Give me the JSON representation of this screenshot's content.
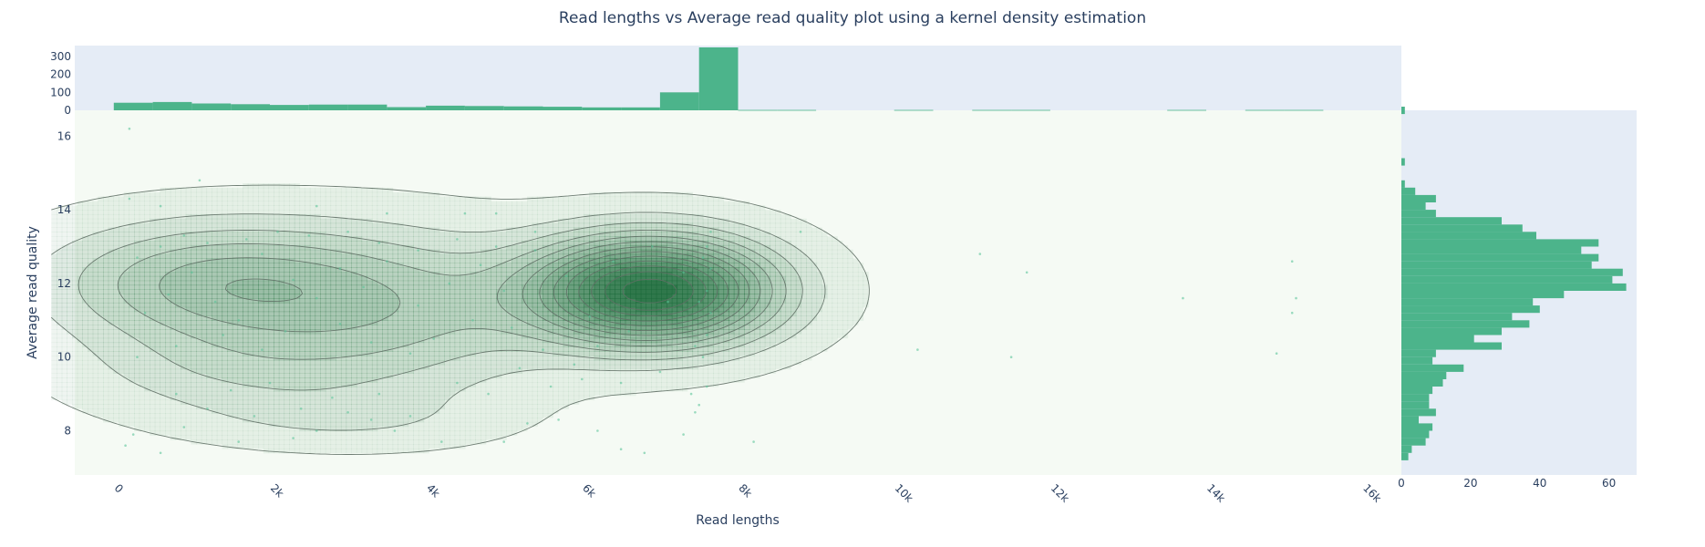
{
  "colors": {
    "bar": "#4cb48b",
    "point": "#5cc49a",
    "contour_line": "#5f6f65",
    "contour_fill": "#1c6b3a",
    "main_bg": "#f5faf4",
    "marginal_bg": "#e5ecf6",
    "text": "#2a3f5f"
  },
  "chart_data": [
    {
      "type": "contour",
      "title": "Read lengths vs Average read quality plot using a kernel density estimation",
      "xlabel": "Read lengths",
      "ylabel": "Average read quality",
      "xlim": [
        -500,
        16500
      ],
      "ylim": [
        6.8,
        16.7
      ],
      "x_ticks": [
        0,
        2000,
        4000,
        6000,
        8000,
        10000,
        12000,
        14000,
        16000
      ],
      "x_tick_labels": [
        "0",
        "2k",
        "4k",
        "6k",
        "8k",
        "10k",
        "12k",
        "14k",
        "16k"
      ],
      "y_ticks": [
        8,
        10,
        12,
        14,
        16
      ],
      "y_tick_labels": [
        "8",
        "10",
        "12",
        "14",
        "16"
      ],
      "grid": false,
      "density_peaks": [
        {
          "x": 6900,
          "y": 11.8,
          "sx": 1050,
          "sy": 1.0,
          "w": 1.0
        },
        {
          "x": 1300,
          "y": 12.0,
          "sx": 1500,
          "sy": 1.15,
          "w": 0.36
        },
        {
          "x": 3700,
          "y": 11.2,
          "sx": 1400,
          "sy": 1.5,
          "w": 0.24
        },
        {
          "x": 1500,
          "y": 9.6,
          "sx": 1400,
          "sy": 0.9,
          "w": 0.13
        },
        {
          "x": 3000,
          "y": 8.3,
          "sx": 1300,
          "sy": 0.55,
          "w": 0.08
        }
      ],
      "points": [
        [
          200,
          16.2
        ],
        [
          1100,
          14.8
        ],
        [
          200,
          14.3
        ],
        [
          600,
          14.1
        ],
        [
          2600,
          14.1
        ],
        [
          3500,
          13.9
        ],
        [
          4500,
          13.9
        ],
        [
          4900,
          13.9
        ],
        [
          8800,
          13.4
        ],
        [
          8200,
          7.7
        ],
        [
          6500,
          7.5
        ],
        [
          6800,
          7.4
        ],
        [
          5000,
          7.7
        ],
        [
          4200,
          7.7
        ],
        [
          600,
          7.4
        ],
        [
          150,
          7.6
        ],
        [
          250,
          7.9
        ],
        [
          900,
          8.1
        ],
        [
          1600,
          7.7
        ],
        [
          2300,
          7.8
        ],
        [
          2600,
          8.0
        ],
        [
          3300,
          8.3
        ],
        [
          3800,
          8.4
        ],
        [
          5300,
          8.2
        ],
        [
          5700,
          8.3
        ],
        [
          6200,
          8.0
        ],
        [
          7300,
          7.9
        ],
        [
          1500,
          9.1
        ],
        [
          2000,
          9.3
        ],
        [
          2800,
          8.9
        ],
        [
          3400,
          9.0
        ],
        [
          4800,
          9.0
        ],
        [
          5600,
          9.2
        ],
        [
          6000,
          9.4
        ],
        [
          300,
          10.0
        ],
        [
          800,
          10.3
        ],
        [
          1400,
          10.6
        ],
        [
          1900,
          10.2
        ],
        [
          2200,
          10.7
        ],
        [
          2900,
          10.9
        ],
        [
          3300,
          10.4
        ],
        [
          3800,
          10.1
        ],
        [
          4100,
          10.5
        ],
        [
          4600,
          11.0
        ],
        [
          5100,
          10.8
        ],
        [
          5500,
          10.2
        ],
        [
          6200,
          10.3
        ],
        [
          400,
          11.2
        ],
        [
          700,
          11.7
        ],
        [
          1000,
          12.3
        ],
        [
          1300,
          11.5
        ],
        [
          1600,
          11.0
        ],
        [
          1900,
          12.8
        ],
        [
          2300,
          12.1
        ],
        [
          2600,
          11.6
        ],
        [
          2900,
          12.4
        ],
        [
          3200,
          11.9
        ],
        [
          3500,
          12.6
        ],
        [
          3900,
          11.4
        ],
        [
          4300,
          12.0
        ],
        [
          4700,
          12.5
        ],
        [
          5000,
          11.8
        ],
        [
          5400,
          12.9
        ],
        [
          5800,
          12.2
        ],
        [
          6100,
          11.1
        ],
        [
          6400,
          12.6
        ],
        [
          6600,
          10.7
        ],
        [
          6900,
          13.0
        ],
        [
          7100,
          11.5
        ],
        [
          7300,
          12.3
        ],
        [
          300,
          12.7
        ],
        [
          600,
          13.0
        ],
        [
          900,
          13.3
        ],
        [
          1200,
          13.1
        ],
        [
          1700,
          13.2
        ],
        [
          2100,
          13.4
        ],
        [
          2500,
          13.3
        ],
        [
          3000,
          13.4
        ],
        [
          3400,
          13.1
        ],
        [
          3900,
          12.9
        ],
        [
          4400,
          13.2
        ],
        [
          4900,
          13.0
        ],
        [
          5400,
          13.4
        ],
        [
          800,
          9.0
        ],
        [
          1200,
          8.6
        ],
        [
          1800,
          8.4
        ],
        [
          2400,
          8.6
        ],
        [
          3000,
          8.5
        ],
        [
          3600,
          8.0
        ],
        [
          4400,
          9.3
        ],
        [
          5200,
          9.7
        ],
        [
          5900,
          9.8
        ],
        [
          6500,
          9.3
        ],
        [
          7000,
          9.6
        ],
        [
          7400,
          9.0
        ],
        [
          7500,
          8.7
        ],
        [
          7450,
          8.5
        ],
        [
          7600,
          9.2
        ],
        [
          7550,
          10.0
        ],
        [
          7600,
          10.6
        ],
        [
          7650,
          11.2
        ],
        [
          7600,
          11.8
        ],
        [
          7650,
          12.4
        ],
        [
          7600,
          13.0
        ],
        [
          7650,
          13.4
        ],
        [
          7550,
          12.7
        ],
        [
          7500,
          11.5
        ],
        [
          7450,
          10.3
        ],
        [
          11100,
          12.8
        ],
        [
          11700,
          12.3
        ],
        [
          10300,
          10.2
        ],
        [
          11500,
          10.0
        ],
        [
          13700,
          11.6
        ],
        [
          15100,
          12.6
        ],
        [
          15150,
          11.6
        ],
        [
          15100,
          11.2
        ],
        [
          14900,
          10.1
        ]
      ]
    },
    {
      "type": "bar",
      "name": "top marginal histogram",
      "ylim": [
        0,
        360
      ],
      "y_ticks": [
        0,
        100,
        200,
        300
      ],
      "y_tick_labels": [
        "0",
        "100",
        "200",
        "300"
      ],
      "x_bins": [
        [
          0,
          500
        ],
        [
          500,
          1000
        ],
        [
          1000,
          1500
        ],
        [
          1500,
          2000
        ],
        [
          2000,
          2500
        ],
        [
          2500,
          3000
        ],
        [
          3000,
          3500
        ],
        [
          3500,
          4000
        ],
        [
          4000,
          4500
        ],
        [
          4500,
          5000
        ],
        [
          5000,
          5500
        ],
        [
          5500,
          6000
        ],
        [
          6000,
          6500
        ],
        [
          6500,
          7000
        ],
        [
          7000,
          7500
        ],
        [
          7500,
          8000
        ],
        [
          8000,
          8500
        ],
        [
          8500,
          9000
        ],
        [
          10000,
          10500
        ],
        [
          11000,
          11500
        ],
        [
          11500,
          12000
        ],
        [
          13500,
          14000
        ],
        [
          14500,
          15000
        ],
        [
          15000,
          15500
        ]
      ],
      "values": [
        42,
        46,
        38,
        34,
        30,
        32,
        32,
        18,
        26,
        24,
        22,
        20,
        16,
        16,
        100,
        350,
        2,
        2,
        2,
        2,
        2,
        2,
        2,
        2
      ]
    },
    {
      "type": "bar",
      "orientation": "horizontal",
      "name": "right marginal histogram",
      "xlim": [
        0,
        68
      ],
      "x_ticks": [
        0,
        20,
        40,
        60
      ],
      "x_tick_labels": [
        "0",
        "20",
        "40",
        "60"
      ],
      "y_bins_start": 7.2,
      "y_bin_width": 0.2,
      "values": [
        2,
        3,
        7,
        8,
        9,
        5,
        10,
        8,
        8,
        9,
        12,
        13,
        18,
        9,
        10,
        29,
        21,
        29,
        37,
        32,
        40,
        38,
        47,
        65,
        61,
        64,
        55,
        57,
        52,
        57,
        39,
        35,
        29,
        10,
        7,
        10,
        4,
        1,
        0,
        0,
        1,
        0,
        0,
        0,
        0,
        0,
        0,
        1,
        0
      ]
    }
  ]
}
